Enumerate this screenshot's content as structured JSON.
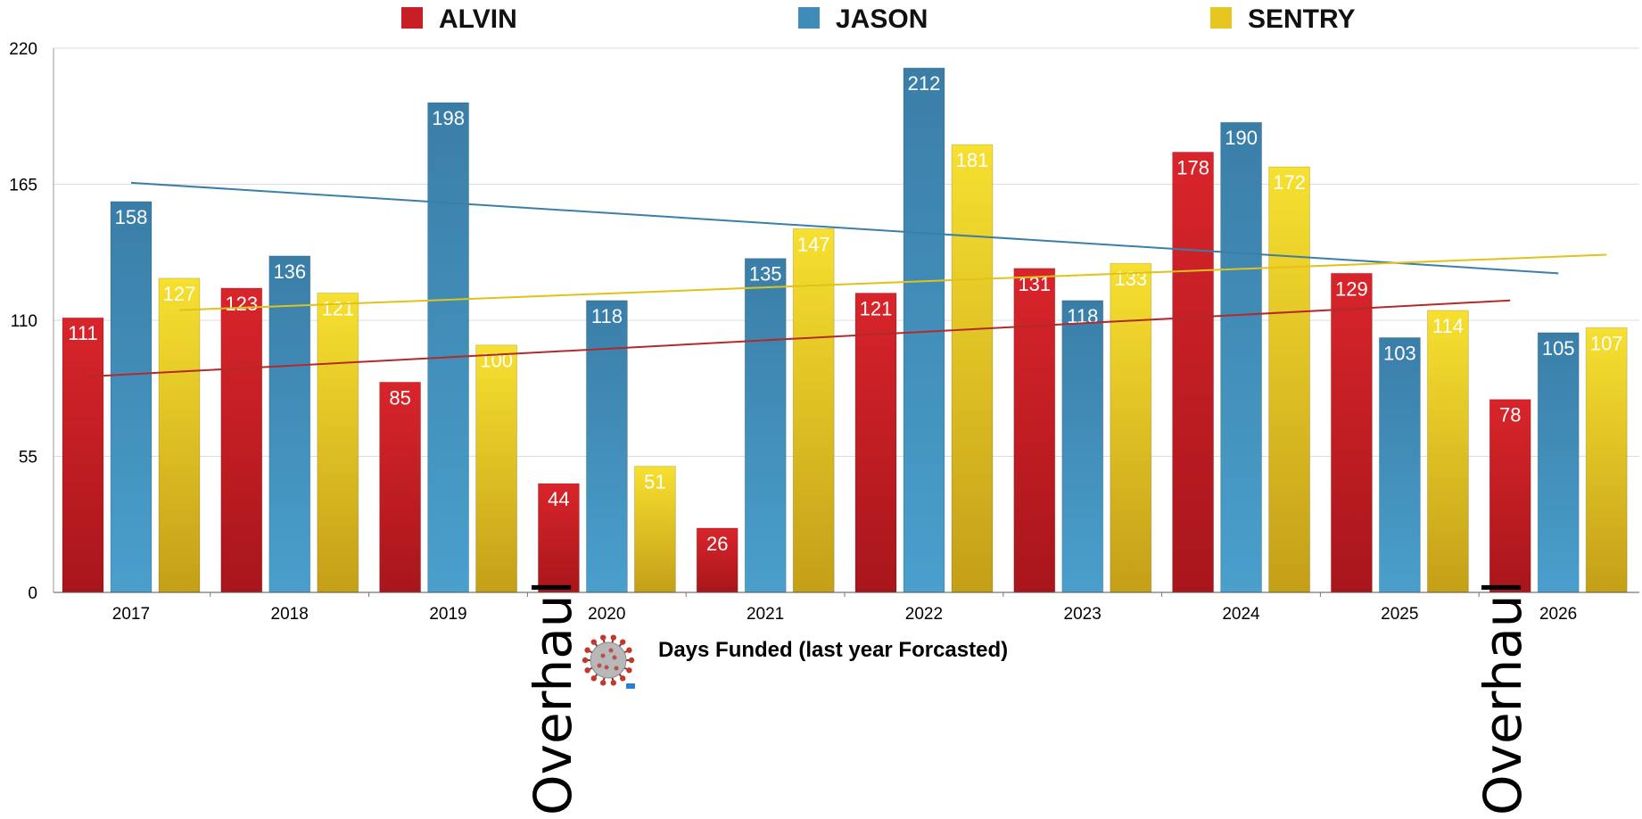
{
  "chart_data": {
    "type": "bar",
    "xlabel": "Days Funded (last year Forcasted)",
    "ylabel": "",
    "ylim": [
      0,
      220
    ],
    "yticks": [
      "0",
      "55",
      "110",
      "165",
      "220"
    ],
    "categories": [
      "2017",
      "2018",
      "2019",
      "2020",
      "2021",
      "2022",
      "2023",
      "2024",
      "2025",
      "2026"
    ],
    "series": [
      {
        "name": "ALVIN",
        "color": "#c71f25",
        "values": [
          111,
          123,
          85,
          44,
          26,
          121,
          131,
          178,
          129,
          78
        ]
      },
      {
        "name": "JASON",
        "color": "#3f8cb8",
        "values": [
          158,
          136,
          198,
          118,
          135,
          212,
          118,
          190,
          103,
          105
        ]
      },
      {
        "name": "SENTRY",
        "color": "#e8c620",
        "values": [
          127,
          121,
          100,
          51,
          147,
          181,
          133,
          172,
          114,
          107
        ]
      }
    ],
    "trendlines": [
      {
        "series": "ALVIN",
        "color": "#b22a2a"
      },
      {
        "series": "JASON",
        "color": "#3d7ea6"
      },
      {
        "series": "SENTRY",
        "color": "#e0c21a"
      }
    ],
    "legend_position": "top",
    "grid": true,
    "annotations": [
      {
        "text": "Overhaul",
        "category": "2020"
      },
      {
        "text": "Overhaul",
        "category": "2026"
      }
    ],
    "icons": [
      {
        "name": "virus-icon",
        "category": "2020"
      }
    ]
  }
}
